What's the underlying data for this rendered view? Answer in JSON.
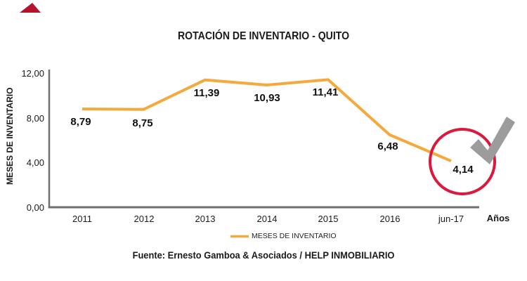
{
  "title": "ROTACIÓN DE INVENTARIO - QUITO",
  "source": "Fuente: Ernesto Gamboa & Asociados / HELP INMOBILIARIO",
  "legend": {
    "label": "MESES DE INVENTARIO"
  },
  "axes": {
    "y_title": "MESES DE INVENTARIO",
    "x_title": "Años"
  },
  "icons": {
    "checkmark": "check-icon",
    "highlight": "highlight-circle",
    "corner": "corner-triangle"
  },
  "colors": {
    "line": "#F5A93C",
    "circle": "#D91A3C",
    "check": "#9C9C9C",
    "axis": "#6F6F6F",
    "triangle": "#B5122E",
    "text": "#1a1a1a"
  },
  "chart_data": {
    "type": "line",
    "title": "ROTACIÓN DE INVENTARIO - QUITO",
    "categories": [
      "2011",
      "2012",
      "2013",
      "2014",
      "2015",
      "2016",
      "jun-17"
    ],
    "series": [
      {
        "name": "MESES DE INVENTARIO",
        "values": [
          8.79,
          8.75,
          11.39,
          10.93,
          11.41,
          6.48,
          4.14
        ],
        "point_labels": [
          "8,79",
          "8,75",
          "11,39",
          "10,93",
          "11,41",
          "6,48",
          "4,14"
        ]
      }
    ],
    "xlabel": "Años",
    "ylabel": "MESES DE INVENTARIO",
    "ylim": [
      0,
      12
    ],
    "y_ticks": [
      {
        "value": 12,
        "label": "12,00"
      },
      {
        "value": 8,
        "label": "8,00"
      },
      {
        "value": 4,
        "label": "4,00"
      },
      {
        "value": 0,
        "label": "0,00"
      }
    ],
    "grid": false,
    "legend_position": "bottom-center",
    "annotations": {
      "highlighted_point": "jun-17",
      "highlight_style": "red-circle-with-gray-checkmark"
    }
  }
}
